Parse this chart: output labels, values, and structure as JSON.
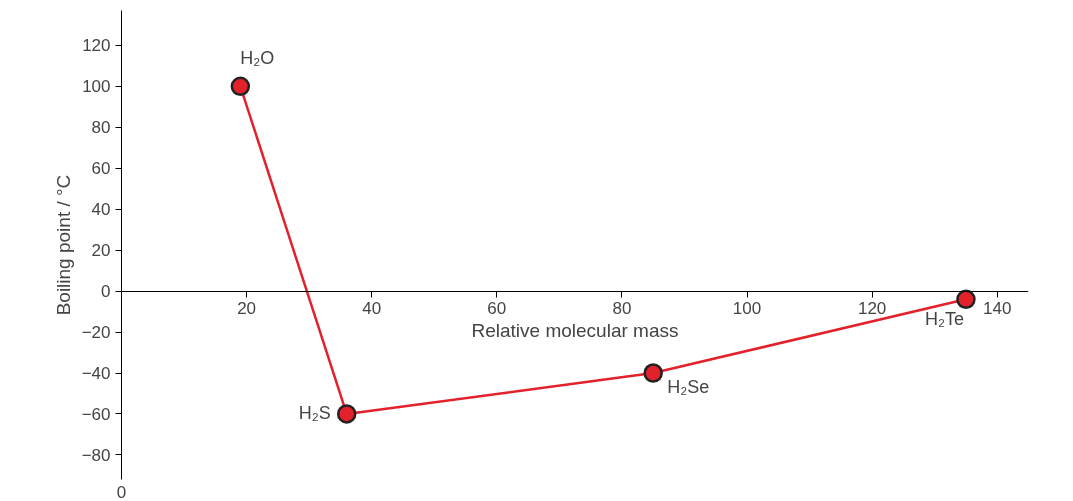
{
  "chart_data": {
    "type": "line",
    "xlabel": "Relative molecular mass",
    "ylabel": "Boiling point / °C",
    "x": [
      19,
      36,
      85,
      135
    ],
    "series": [
      {
        "color": "#e3212b",
        "values": [
          100,
          -60,
          -40,
          -4
        ]
      }
    ],
    "xlim": [
      0,
      145
    ],
    "ylim": [
      -92,
      137
    ],
    "xticks": [
      20,
      40,
      60,
      80,
      100,
      120,
      140
    ],
    "yticks": [
      -80,
      -60,
      -40,
      -20,
      0,
      20,
      40,
      60,
      80,
      100,
      120
    ],
    "marker": "circle",
    "grid": false,
    "annotations": [
      {
        "text": "H₂O",
        "x": 19,
        "y": 100
      },
      {
        "text": "H₂S",
        "x": 36,
        "y": -60
      },
      {
        "text": "H₂Se",
        "x": 85,
        "y": -40
      },
      {
        "text": "H₂Te",
        "x": 135,
        "y": -4
      },
      "0"
    ]
  }
}
